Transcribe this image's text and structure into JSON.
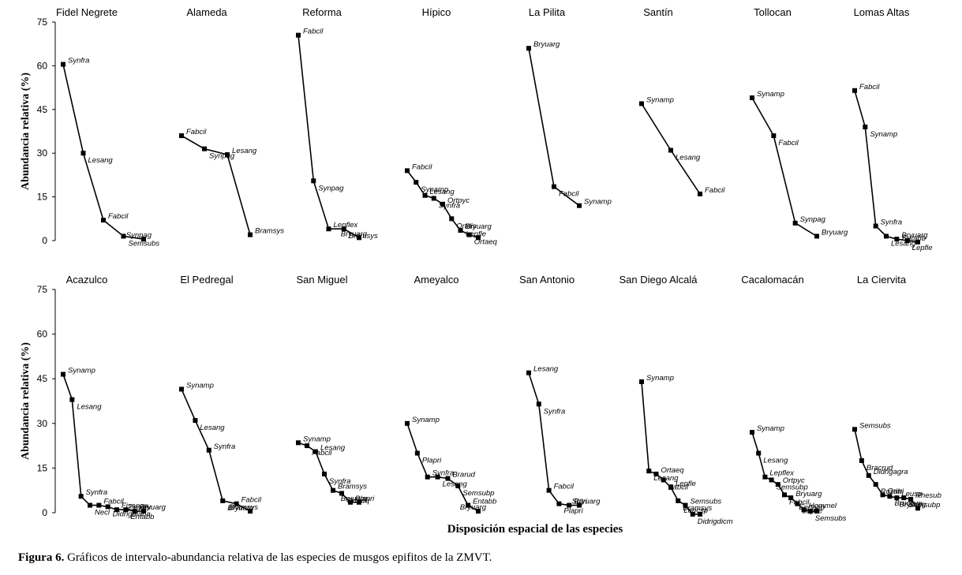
{
  "figure": {
    "y_axis_label": "Abundancia relativa (%)",
    "x_axis_label": "Disposición espacial de las especies",
    "y_ticks": [
      "75",
      "60",
      "45",
      "30",
      "15",
      "0"
    ]
  },
  "caption": {
    "label": "Figura 6.",
    "text": " Gráficos de intervalo-abundancia relativa de las especies de musgos epifitos de la ZMVT."
  },
  "chart_data": [
    {
      "type": "line",
      "title": "Fidel Negrete",
      "ylim": [
        0,
        75
      ],
      "points": [
        {
          "y": 60.5,
          "label": "Synfra"
        },
        {
          "y": 30,
          "label": "Lesang"
        },
        {
          "y": 7,
          "label": "Fabcil"
        },
        {
          "y": 1.5,
          "label": "Semsubs"
        },
        {
          "y": 0.5,
          "label": "Synpag"
        }
      ]
    },
    {
      "type": "line",
      "title": "Alameda",
      "ylim": [
        0,
        75
      ],
      "points": [
        {
          "y": 36,
          "label": "Fabcil"
        },
        {
          "y": 31.5,
          "label": "Synpag"
        },
        {
          "y": 29.5,
          "label": "Lesang"
        },
        {
          "y": 2,
          "label": "Bramsys"
        }
      ]
    },
    {
      "type": "line",
      "title": "Reforma",
      "ylim": [
        0,
        75
      ],
      "points": [
        {
          "y": 70.5,
          "label": "Fabcil"
        },
        {
          "y": 20.5,
          "label": "Synpag"
        },
        {
          "y": 4,
          "label": "Lepflex"
        },
        {
          "y": 4,
          "label": "Bramsys"
        },
        {
          "y": 1,
          "label": "Bryuarg"
        }
      ]
    },
    {
      "type": "line",
      "title": "Hípico",
      "ylim": [
        0,
        75
      ],
      "points": [
        {
          "y": 24,
          "label": "Fabcil"
        },
        {
          "y": 20,
          "label": "Synamp"
        },
        {
          "y": 15.5,
          "label": "Lesang"
        },
        {
          "y": 14.5,
          "label": "Synfra"
        },
        {
          "y": 12.5,
          "label": "Ortpyc"
        },
        {
          "y": 7.5,
          "label": "Ortdis"
        },
        {
          "y": 3.5,
          "label": "Bryuarg"
        },
        {
          "y": 2,
          "label": "Ortaeq"
        },
        {
          "y": 1,
          "label": "Lepfle"
        }
      ]
    },
    {
      "type": "line",
      "title": "La Pilita",
      "ylim": [
        0,
        75
      ],
      "points": [
        {
          "y": 66,
          "label": "Bryuarg"
        },
        {
          "y": 18.5,
          "label": "Fabcil"
        },
        {
          "y": 12,
          "label": "Synamp"
        }
      ]
    },
    {
      "type": "line",
      "title": "Santín",
      "ylim": [
        0,
        75
      ],
      "points": [
        {
          "y": 47,
          "label": "Synamp"
        },
        {
          "y": 31,
          "label": "Lesang"
        },
        {
          "y": 16,
          "label": "Fabcil"
        }
      ]
    },
    {
      "type": "line",
      "title": "Tollocan",
      "ylim": [
        0,
        75
      ],
      "points": [
        {
          "y": 49,
          "label": "Synamp"
        },
        {
          "y": 36,
          "label": "Fabcil"
        },
        {
          "y": 6,
          "label": "Synpag"
        },
        {
          "y": 1.5,
          "label": "Bryuarg"
        }
      ]
    },
    {
      "type": "line",
      "title": "Lomas Altas",
      "ylim": [
        0,
        75
      ],
      "points": [
        {
          "y": 51.5,
          "label": "Fabcil"
        },
        {
          "y": 39,
          "label": "Synamp"
        },
        {
          "y": 5,
          "label": "Synfra"
        },
        {
          "y": 1.5,
          "label": "Lesang"
        },
        {
          "y": 0.5,
          "label": "Bryuarg"
        },
        {
          "y": 0,
          "label": "Lepfle"
        },
        {
          "y": -0.5,
          "label": "Entabb"
        }
      ]
    },
    {
      "type": "line",
      "title": "Acazulco",
      "ylim": [
        0,
        75
      ],
      "points": [
        {
          "y": 46.5,
          "label": "Synamp"
        },
        {
          "y": 38,
          "label": "Lesang"
        },
        {
          "y": 5.5,
          "label": "Synfra"
        },
        {
          "y": 2.5,
          "label": "Necl"
        },
        {
          "y": 2.5,
          "label": "Fabcil"
        },
        {
          "y": 2,
          "label": "Didrigularia"
        },
        {
          "y": 1,
          "label": "Fisangu"
        },
        {
          "y": 1,
          "label": "Entabb"
        },
        {
          "y": 0.5,
          "label": "Bryuarg"
        },
        {
          "y": 0.5,
          "label": "Zygobr"
        }
      ]
    },
    {
      "type": "line",
      "title": "El Pedregal",
      "ylim": [
        0,
        75
      ],
      "points": [
        {
          "y": 41.5,
          "label": "Synamp"
        },
        {
          "y": 31,
          "label": "Lesang"
        },
        {
          "y": 21,
          "label": "Synfra"
        },
        {
          "y": 4,
          "label": "Bryuarg"
        },
        {
          "y": 3,
          "label": "Fabcil"
        },
        {
          "y": 0.5,
          "label": "Bramsys"
        }
      ]
    },
    {
      "type": "line",
      "title": "San Miguel",
      "ylim": [
        0,
        75
      ],
      "points": [
        {
          "y": 23.5,
          "label": "Synamp"
        },
        {
          "y": 22.5,
          "label": "Fabcil"
        },
        {
          "y": 20.5,
          "label": "Lesang"
        },
        {
          "y": 13,
          "label": "Synfra"
        },
        {
          "y": 7.5,
          "label": "Bramsys"
        },
        {
          "y": 6.5,
          "label": "Ortaeq"
        },
        {
          "y": 3.5,
          "label": "Plapri"
        },
        {
          "y": 3.5,
          "label": "Bryuarg"
        }
      ]
    },
    {
      "type": "line",
      "title": "Ameyalco",
      "ylim": [
        0,
        75
      ],
      "points": [
        {
          "y": 30,
          "label": "Synamp"
        },
        {
          "y": 20,
          "label": "Plapri"
        },
        {
          "y": 12,
          "label": "Synfra"
        },
        {
          "y": 12,
          "label": "Lesang"
        },
        {
          "y": 11.5,
          "label": "Brarud"
        },
        {
          "y": 9,
          "label": "Semsubp"
        },
        {
          "y": 2.5,
          "label": "Entabb"
        },
        {
          "y": 0.5,
          "label": "Bryuarg"
        }
      ]
    },
    {
      "type": "line",
      "title": "San Antonio",
      "ylim": [
        0,
        75
      ],
      "points": [
        {
          "y": 47,
          "label": "Lesang"
        },
        {
          "y": 36.5,
          "label": "Synfra"
        },
        {
          "y": 7.5,
          "label": "Fabcil"
        },
        {
          "y": 3,
          "label": "Plapri"
        },
        {
          "y": 2.5,
          "label": "Bryuarg"
        },
        {
          "y": 2.5,
          "label": "Sritri"
        }
      ]
    },
    {
      "type": "line",
      "title": "San Diego Alcalá",
      "ylim": [
        0,
        75
      ],
      "points": [
        {
          "y": 44,
          "label": "Synamp"
        },
        {
          "y": 14,
          "label": "Lesang"
        },
        {
          "y": 13,
          "label": "Ortaeq"
        },
        {
          "y": 11,
          "label": "Fabcil"
        },
        {
          "y": 8.5,
          "label": "Lepfle"
        },
        {
          "y": 4,
          "label": "Bramsys"
        },
        {
          "y": 2.5,
          "label": "Semsubs"
        },
        {
          "y": -0.5,
          "label": "Didrigdicm"
        },
        {
          "y": -0.5,
          "label": "Leucsp"
        }
      ]
    },
    {
      "type": "line",
      "title": "Cacalomacán",
      "ylim": [
        0,
        75
      ],
      "points": [
        {
          "y": 27,
          "label": "Synamp"
        },
        {
          "y": 20,
          "label": "Lesang"
        },
        {
          "y": 12,
          "label": "Lepflex"
        },
        {
          "y": 11,
          "label": "Semsubp"
        },
        {
          "y": 9.5,
          "label": "Ortpyc"
        },
        {
          "y": 6,
          "label": "Fabcil"
        },
        {
          "y": 5,
          "label": "Bryuarg"
        },
        {
          "y": 3,
          "label": "Lepfle"
        },
        {
          "y": 1,
          "label": "Hommel"
        },
        {
          "y": 0.5,
          "label": "Semsubs"
        },
        {
          "y": 0.5,
          "label": "Endabb"
        }
      ]
    },
    {
      "type": "line",
      "title": "La Ciervita",
      "ylim": [
        0,
        75
      ],
      "points": [
        {
          "y": 28,
          "label": "Semsubs"
        },
        {
          "y": 17.5,
          "label": "Bracrud"
        },
        {
          "y": 12.5,
          "label": "Didrigagra"
        },
        {
          "y": 9.5,
          "label": "Rozan"
        },
        {
          "y": 6,
          "label": "Gritri"
        },
        {
          "y": 5.5,
          "label": "Bruojam"
        },
        {
          "y": 5,
          "label": "Leusp"
        },
        {
          "y": 5,
          "label": "Semsubp"
        },
        {
          "y": 4.5,
          "label": "Rhesub"
        },
        {
          "y": 1.5,
          "label": "Bryuarg"
        }
      ]
    }
  ]
}
